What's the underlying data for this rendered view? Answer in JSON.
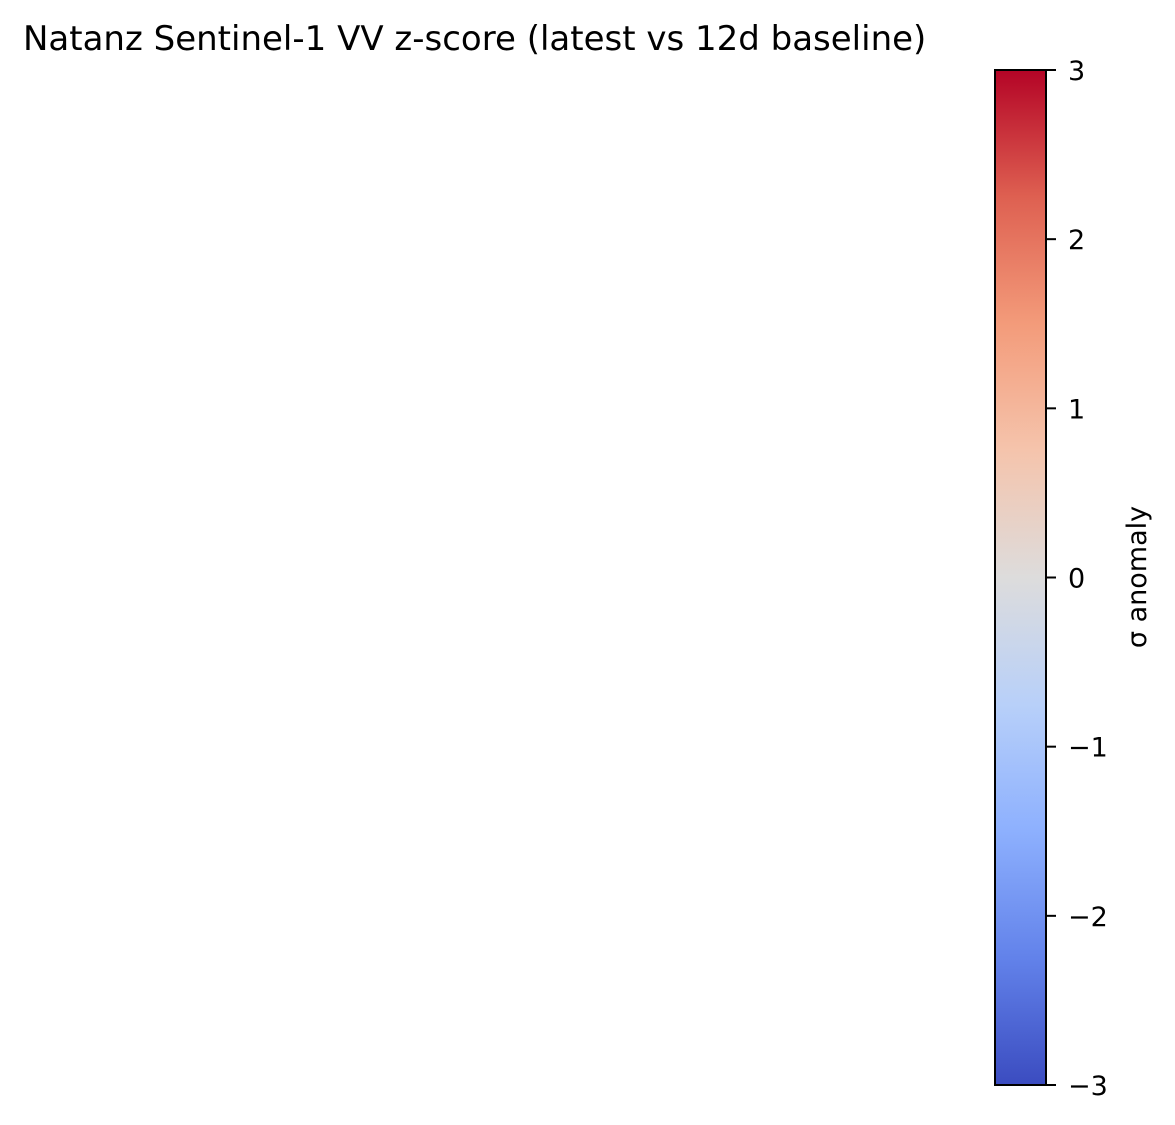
{
  "chart_data": {
    "type": "heatmap",
    "title": "Natanz Sentinel-1 VV z-score (latest vs 12d baseline)",
    "values": [],
    "colorbar": {
      "label": "σ anomaly",
      "range": [
        -3,
        3
      ],
      "ticks": [
        {
          "value": 3,
          "label": "3"
        },
        {
          "value": 2,
          "label": "2"
        },
        {
          "value": 1,
          "label": "1"
        },
        {
          "value": 0,
          "label": "0"
        },
        {
          "value": -1,
          "label": "−1"
        },
        {
          "value": -2,
          "label": "−2"
        },
        {
          "value": -3,
          "label": "−3"
        }
      ],
      "colormap": "coolwarm",
      "stops": [
        "#3b4cc0",
        "#6282ea",
        "#8db0fe",
        "#b8d0f9",
        "#dddcdc",
        "#f5c4ac",
        "#f39b7a",
        "#de6051",
        "#b40426"
      ]
    }
  }
}
